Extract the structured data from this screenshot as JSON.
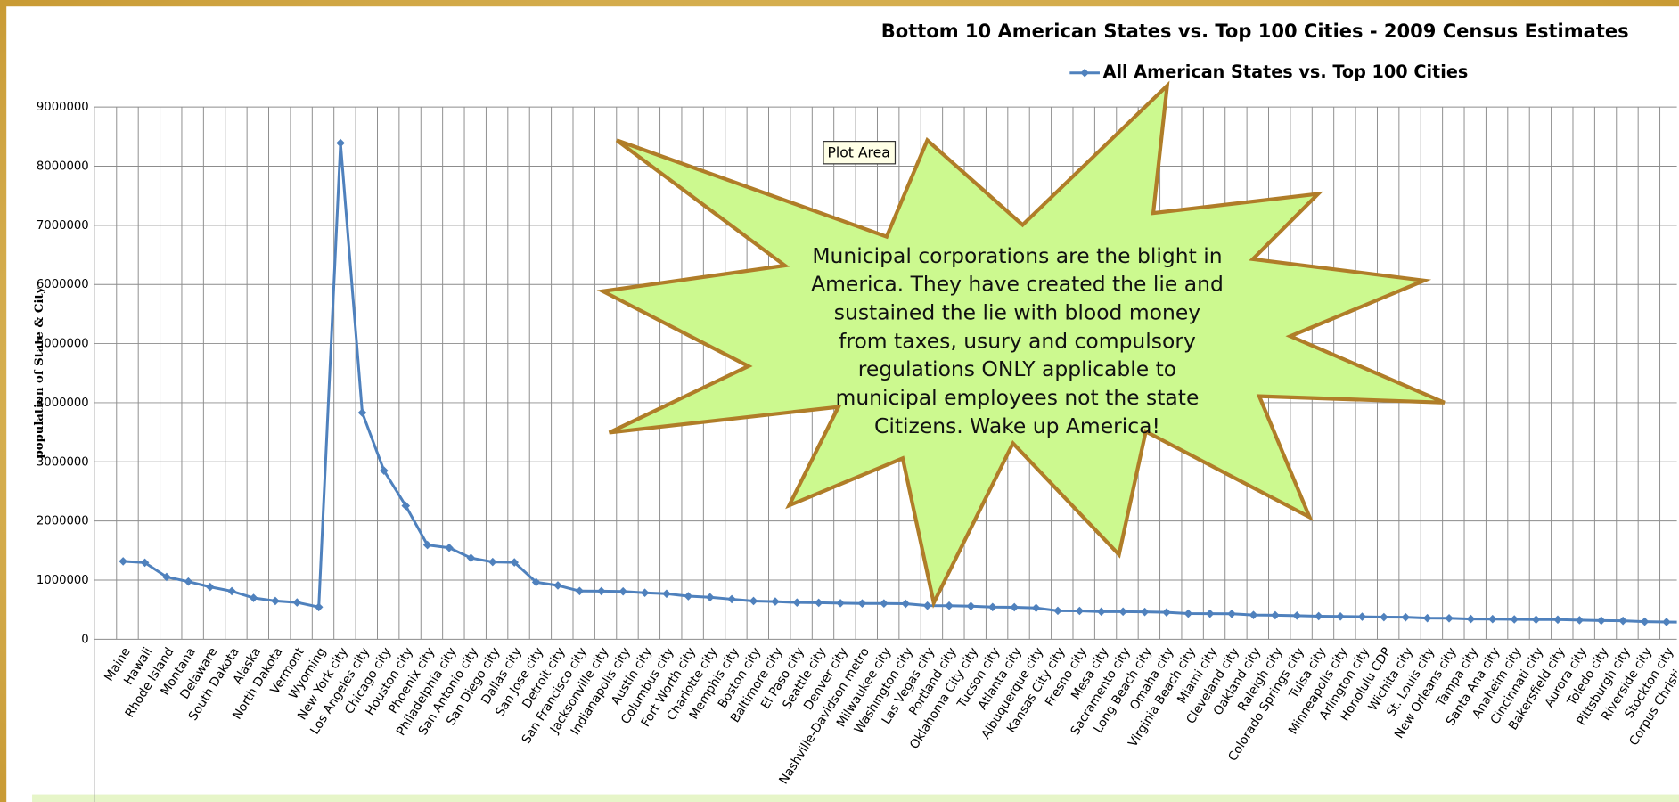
{
  "chart_data": {
    "type": "line",
    "title": "Bottom 10 American States vs. Top 100 Cities - 2009 Census Estimates",
    "y_label": "population of State & City",
    "tooltip": "Plot Area",
    "annotation": [
      "Municipal corporations are the blight in",
      "America. They have created the lie and",
      "sustained the lie  with blood money",
      "from taxes, usury and compulsory",
      "regulations ONLY applicable to",
      "municipal employees not the state",
      "Citizens. Wake up America!"
    ],
    "categories": [
      "Maine",
      "Hawaii",
      "Rhode Island",
      "Montana",
      "Delaware",
      "South Dakota",
      "Alaska",
      "North Dakota",
      "Vermont",
      "Wyoming",
      "New York city",
      "Los Angeles city",
      "Chicago city",
      "Houston city",
      "Phoenix city",
      "Philadelphia city",
      "San Antonio city",
      "San Diego city",
      "Dallas city",
      "San Jose city",
      "Detroit city",
      "San Francisco city",
      "Jacksonville city",
      "Indianapolis city",
      "Austin city",
      "Columbus city",
      "Fort Worth city",
      "Charlotte city",
      "Memphis city",
      "Boston city",
      "Baltimore city",
      "El Paso city",
      "Seattle city",
      "Denver city",
      "Nashville-Davidson metro",
      "Milwaukee city",
      "Washington city",
      "Las Vegas city",
      "Portland city",
      "Oklahoma City city",
      "Tucson city",
      "Atlanta city",
      "Albuquerque city",
      "Kansas City city",
      "Fresno city",
      "Mesa city",
      "Sacramento city",
      "Long Beach city",
      "Omaha city",
      "Virginia Beach city",
      "Miami city",
      "Cleveland city",
      "Oakland city",
      "Raleigh city",
      "Colorado Springs city",
      "Tulsa city",
      "Minneapolis city",
      "Arlington city",
      "Honolulu CDP",
      "Wichita city",
      "St. Louis city",
      "New Orleans city",
      "Tampa city",
      "Santa Ana city",
      "Anaheim city",
      "Cincinnati city",
      "Bakersfield city",
      "Aurora city",
      "Toledo city",
      "Pittsburgh city",
      "Riverside city",
      "Stockton city",
      "Corpus Christi city"
    ],
    "series": [
      {
        "name": "All American States vs. Top 100 Cities",
        "color": "#4f81bd",
        "values": [
          1318000,
          1295000,
          1053000,
          975000,
          885000,
          812000,
          698000,
          647000,
          622000,
          544000,
          8392000,
          3832000,
          2851000,
          2257000,
          1594000,
          1547000,
          1374000,
          1307000,
          1300000,
          965000,
          910000,
          815000,
          813000,
          808000,
          786000,
          770000,
          728000,
          709000,
          677000,
          646000,
          637000,
          621000,
          617000,
          610000,
          605000,
          605000,
          600000,
          568000,
          567000,
          560000,
          544000,
          541000,
          529000,
          482000,
          480000,
          467000,
          467000,
          463000,
          455000,
          434000,
          433000,
          431000,
          410000,
          406000,
          400000,
          390000,
          385000,
          381000,
          374000,
          372000,
          357000,
          355000,
          343000,
          341000,
          337000,
          333000,
          333000,
          323000,
          316000,
          312000,
          298000,
          292000,
          288000
        ]
      }
    ],
    "ylim": [
      0,
      9000000
    ],
    "yticks": [
      0,
      1000000,
      2000000,
      3000000,
      4000000,
      5000000,
      6000000,
      7000000,
      8000000,
      9000000
    ],
    "grid": true
  }
}
